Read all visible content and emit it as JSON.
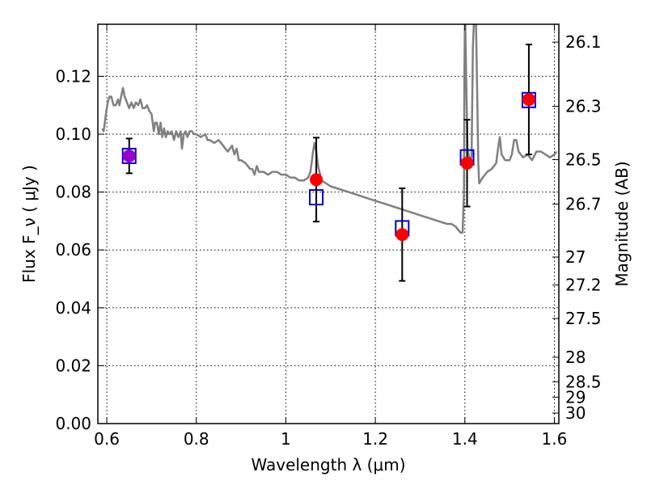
{
  "chart_data": {
    "type": "scatter",
    "xlabel": "Wavelength  λ (μm)",
    "ylabel": "Flux  F_ν  ( μJy )",
    "ylabel_right": "Magnitude (AB)",
    "xlim": [
      0.58,
      1.61
    ],
    "ylim": [
      0.0,
      0.138
    ],
    "grid": true,
    "x_ticks": [
      {
        "value": 0.6,
        "label": "0.6"
      },
      {
        "value": 0.8,
        "label": "0.8"
      },
      {
        "value": 1.0,
        "label": "1"
      },
      {
        "value": 1.2,
        "label": "1.2"
      },
      {
        "value": 1.4,
        "label": "1.4"
      },
      {
        "value": 1.6,
        "label": "1.6"
      }
    ],
    "y_ticks": [
      {
        "value": 0.0,
        "label": "0.00"
      },
      {
        "value": 0.02,
        "label": "0.02"
      },
      {
        "value": 0.04,
        "label": "0.04"
      },
      {
        "value": 0.06,
        "label": "0.06"
      },
      {
        "value": 0.08,
        "label": "0.08"
      },
      {
        "value": 0.1,
        "label": "0.10"
      },
      {
        "value": 0.12,
        "label": "0.12"
      }
    ],
    "mag_ticks": [
      {
        "mag": 26.1,
        "label": "26.1"
      },
      {
        "mag": 26.3,
        "label": "26.3"
      },
      {
        "mag": 26.5,
        "label": "26.5"
      },
      {
        "mag": 26.7,
        "label": "26.7"
      },
      {
        "mag": 27.0,
        "label": "27"
      },
      {
        "mag": 27.2,
        "label": "27.2"
      },
      {
        "mag": 27.5,
        "label": "27.5"
      },
      {
        "mag": 28.0,
        "label": "28"
      },
      {
        "mag": 28.5,
        "label": "28.5"
      },
      {
        "mag": 29.0,
        "label": "29"
      },
      {
        "mag": 30.0,
        "label": "30"
      }
    ],
    "model_spectrum": {
      "color": "#808080",
      "points": [
        [
          0.59,
          0.102
        ],
        [
          0.593,
          0.101
        ],
        [
          0.598,
          0.107
        ],
        [
          0.602,
          0.111
        ],
        [
          0.606,
          0.113
        ],
        [
          0.61,
          0.113
        ],
        [
          0.615,
          0.11
        ],
        [
          0.62,
          0.11
        ],
        [
          0.625,
          0.112
        ],
        [
          0.628,
          0.11
        ],
        [
          0.632,
          0.113
        ],
        [
          0.636,
          0.116
        ],
        [
          0.64,
          0.113
        ],
        [
          0.645,
          0.111
        ],
        [
          0.65,
          0.109
        ],
        [
          0.655,
          0.111
        ],
        [
          0.66,
          0.109
        ],
        [
          0.665,
          0.111
        ],
        [
          0.67,
          0.11
        ],
        [
          0.675,
          0.112
        ],
        [
          0.68,
          0.109
        ],
        [
          0.685,
          0.109
        ],
        [
          0.69,
          0.11
        ],
        [
          0.695,
          0.108
        ],
        [
          0.7,
          0.107
        ],
        [
          0.705,
          0.101
        ],
        [
          0.708,
          0.104
        ],
        [
          0.712,
          0.104
        ],
        [
          0.716,
          0.1
        ],
        [
          0.72,
          0.104
        ],
        [
          0.724,
          0.099
        ],
        [
          0.728,
          0.102
        ],
        [
          0.732,
          0.099
        ],
        [
          0.736,
          0.101
        ],
        [
          0.74,
          0.1
        ],
        [
          0.745,
          0.101
        ],
        [
          0.75,
          0.098
        ],
        [
          0.755,
          0.101
        ],
        [
          0.76,
          0.099
        ],
        [
          0.765,
          0.101
        ],
        [
          0.768,
          0.095
        ],
        [
          0.772,
          0.1
        ],
        [
          0.776,
          0.101
        ],
        [
          0.78,
          0.099
        ],
        [
          0.785,
          0.101
        ],
        [
          0.79,
          0.101
        ],
        [
          0.795,
          0.1
        ],
        [
          0.8,
          0.1
        ],
        [
          0.81,
          0.099
        ],
        [
          0.82,
          0.1
        ],
        [
          0.825,
          0.098
        ],
        [
          0.83,
          0.098
        ],
        [
          0.84,
          0.097
        ],
        [
          0.85,
          0.098
        ],
        [
          0.86,
          0.096
        ],
        [
          0.87,
          0.094
        ],
        [
          0.88,
          0.096
        ],
        [
          0.885,
          0.093
        ],
        [
          0.89,
          0.095
        ],
        [
          0.895,
          0.091
        ],
        [
          0.9,
          0.091
        ],
        [
          0.91,
          0.09
        ],
        [
          0.92,
          0.088
        ],
        [
          0.925,
          0.088
        ],
        [
          0.93,
          0.086
        ],
        [
          0.935,
          0.089
        ],
        [
          0.94,
          0.087
        ],
        [
          0.95,
          0.087
        ],
        [
          0.96,
          0.086
        ],
        [
          0.97,
          0.087
        ],
        [
          0.98,
          0.087
        ],
        [
          0.99,
          0.086
        ],
        [
          1.0,
          0.086
        ],
        [
          1.01,
          0.085
        ],
        [
          1.02,
          0.085
        ],
        [
          1.03,
          0.084
        ],
        [
          1.04,
          0.084
        ],
        [
          1.05,
          0.085
        ],
        [
          1.055,
          0.087
        ],
        [
          1.06,
          0.093
        ],
        [
          1.064,
          0.097
        ],
        [
          1.068,
          0.094
        ],
        [
          1.072,
          0.089
        ],
        [
          1.08,
          0.084
        ],
        [
          1.1,
          0.082
        ],
        [
          1.12,
          0.081
        ],
        [
          1.14,
          0.08
        ],
        [
          1.16,
          0.079
        ],
        [
          1.18,
          0.078
        ],
        [
          1.2,
          0.077
        ],
        [
          1.22,
          0.076
        ],
        [
          1.24,
          0.075
        ],
        [
          1.26,
          0.074
        ],
        [
          1.28,
          0.073
        ],
        [
          1.3,
          0.072
        ],
        [
          1.32,
          0.071
        ],
        [
          1.34,
          0.07
        ],
        [
          1.36,
          0.069
        ],
        [
          1.37,
          0.069
        ],
        [
          1.38,
          0.068
        ],
        [
          1.385,
          0.067
        ],
        [
          1.39,
          0.066
        ],
        [
          1.395,
          0.066
        ],
        [
          1.398,
          0.08
        ],
        [
          1.399,
          0.12
        ],
        [
          1.4,
          0.138
        ],
        [
          1.401,
          0.138
        ],
        [
          1.403,
          0.12
        ],
        [
          1.406,
          0.095
        ],
        [
          1.41,
          0.092
        ],
        [
          1.415,
          0.092
        ],
        [
          1.418,
          0.13
        ],
        [
          1.42,
          0.138
        ],
        [
          1.425,
          0.138
        ],
        [
          1.428,
          0.11
        ],
        [
          1.43,
          0.09
        ],
        [
          1.432,
          0.083
        ],
        [
          1.44,
          0.085
        ],
        [
          1.45,
          0.087
        ],
        [
          1.46,
          0.088
        ],
        [
          1.47,
          0.09
        ],
        [
          1.475,
          0.096
        ],
        [
          1.478,
          0.099
        ],
        [
          1.482,
          0.093
        ],
        [
          1.49,
          0.091
        ],
        [
          1.5,
          0.091
        ],
        [
          1.505,
          0.093
        ],
        [
          1.51,
          0.098
        ],
        [
          1.515,
          0.098
        ],
        [
          1.52,
          0.094
        ],
        [
          1.53,
          0.092
        ],
        [
          1.54,
          0.093
        ],
        [
          1.55,
          0.091
        ],
        [
          1.56,
          0.094
        ],
        [
          1.57,
          0.094
        ],
        [
          1.58,
          0.093
        ],
        [
          1.59,
          0.092
        ],
        [
          1.6,
          0.093
        ],
        [
          1.605,
          0.094
        ]
      ]
    },
    "observed": {
      "color": "#ff0000",
      "errorbar_color": "#000000",
      "points": [
        {
          "x": 0.65,
          "y": 0.0925,
          "yerr_low": 0.006,
          "yerr_high": 0.006
        },
        {
          "x": 1.068,
          "y": 0.0843,
          "yerr_low": 0.0145,
          "yerr_high": 0.0145
        },
        {
          "x": 1.26,
          "y": 0.0653,
          "yerr_low": 0.016,
          "yerr_high": 0.016
        },
        {
          "x": 1.405,
          "y": 0.09,
          "yerr_low": 0.015,
          "yerr_high": 0.015
        },
        {
          "x": 1.543,
          "y": 0.112,
          "yerr_low": 0.019,
          "yerr_high": 0.019
        }
      ]
    },
    "model_bandpass": {
      "color": "#0000cc",
      "points": [
        {
          "x": 0.65,
          "y": 0.0925
        },
        {
          "x": 1.068,
          "y": 0.0782
        },
        {
          "x": 1.26,
          "y": 0.0675
        },
        {
          "x": 1.405,
          "y": 0.092
        },
        {
          "x": 1.543,
          "y": 0.1118
        }
      ]
    },
    "highlight_color": "#9900cc"
  }
}
